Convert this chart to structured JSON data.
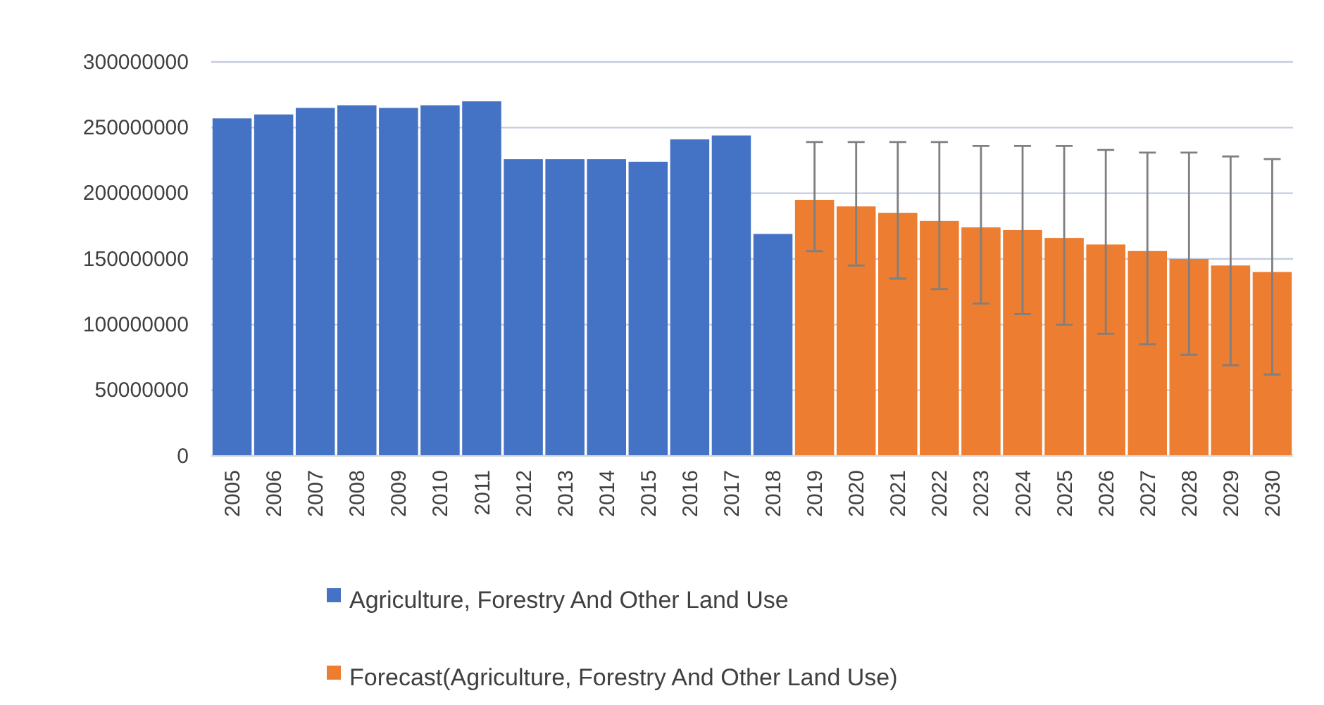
{
  "chart_data": {
    "type": "bar",
    "categories": [
      "2005",
      "2006",
      "2007",
      "2008",
      "2009",
      "2010",
      "2011",
      "2012",
      "2013",
      "2014",
      "2015",
      "2016",
      "2017",
      "2018",
      "2019",
      "2020",
      "2021",
      "2022",
      "2023",
      "2024",
      "2025",
      "2026",
      "2027",
      "2028",
      "2029",
      "2030"
    ],
    "series": [
      {
        "name": "Agriculture, Forestry And Other Land Use",
        "color": "#4472c4",
        "values": [
          257000000,
          260000000,
          265000000,
          267000000,
          265000000,
          267000000,
          270000000,
          226000000,
          226000000,
          226000000,
          224000000,
          241000000,
          244000000,
          169000000,
          null,
          null,
          null,
          null,
          null,
          null,
          null,
          null,
          null,
          null,
          null,
          null
        ]
      },
      {
        "name": "Forecast(Agriculture, Forestry And Other Land Use)",
        "color": "#ed7d31",
        "values": [
          null,
          null,
          null,
          null,
          null,
          null,
          null,
          null,
          null,
          null,
          null,
          null,
          null,
          null,
          195000000,
          190000000,
          185000000,
          179000000,
          174000000,
          172000000,
          166000000,
          161000000,
          156000000,
          150000000,
          145000000,
          140000000
        ],
        "errors": [
          null,
          null,
          null,
          null,
          null,
          null,
          null,
          null,
          null,
          null,
          null,
          null,
          null,
          null,
          [
            156000000,
            239000000
          ],
          [
            145000000,
            239000000
          ],
          [
            135000000,
            239000000
          ],
          [
            127000000,
            239000000
          ],
          [
            116000000,
            236000000
          ],
          [
            108000000,
            236000000
          ],
          [
            100000000,
            236000000
          ],
          [
            93000000,
            233000000
          ],
          [
            85000000,
            231000000
          ],
          [
            77000000,
            231000000
          ],
          [
            69000000,
            228000000
          ],
          [
            62000000,
            226000000
          ]
        ]
      }
    ],
    "ylim": [
      0,
      300000000
    ],
    "yticks": [
      0,
      50000000,
      100000000,
      150000000,
      200000000,
      250000000,
      300000000
    ],
    "grid": "y",
    "legend": "bottom"
  }
}
